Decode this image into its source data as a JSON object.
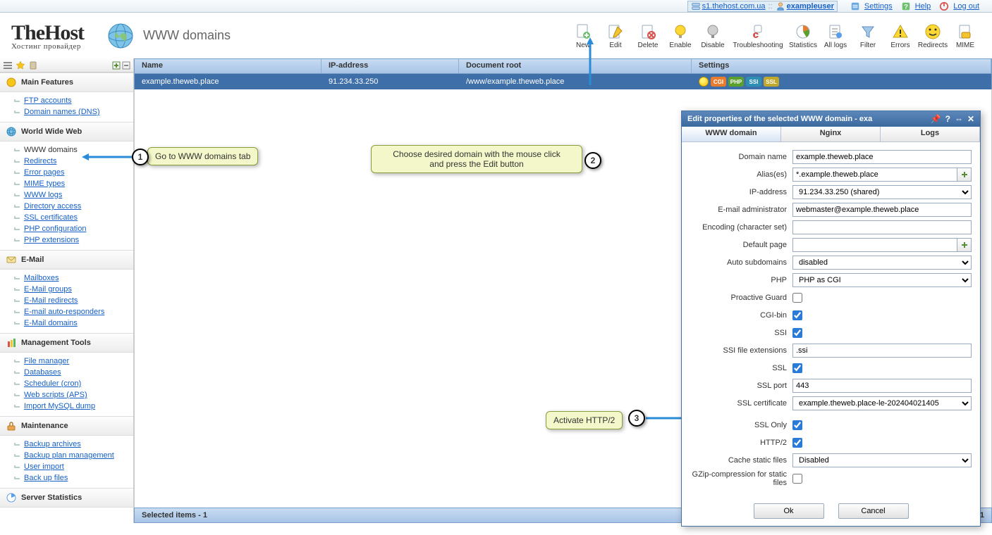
{
  "top": {
    "host": "s1.thehost.com.ua",
    "sep": "::",
    "user": "exampleuser",
    "links": {
      "settings": "Settings",
      "help": "Help",
      "logout": "Log out"
    }
  },
  "brand": {
    "big": "TheHost",
    "sub": "Хостинг провайдер"
  },
  "page_title": "WWW domains",
  "tools": [
    {
      "id": "new",
      "lbl": "New",
      "svg": "📄",
      "plus": true
    },
    {
      "id": "edit",
      "lbl": "Edit",
      "svg": "✏️"
    },
    {
      "id": "delete",
      "lbl": "Delete",
      "svg": "🗑"
    },
    {
      "id": "enable",
      "lbl": "Enable",
      "svg": "💡"
    },
    {
      "id": "disable",
      "lbl": "Disable",
      "svg": "○"
    },
    {
      "id": "troubleshooting",
      "lbl": "Troubleshooting",
      "svg": "🩺",
      "wide": true
    },
    {
      "id": "statistics",
      "lbl": "Statistics",
      "svg": "📊"
    },
    {
      "id": "alllogs",
      "lbl": "All logs",
      "svg": "📋"
    },
    {
      "id": "filter",
      "lbl": "Filter",
      "svg": "▼"
    },
    {
      "id": "errors",
      "lbl": "Errors",
      "svg": "⚠"
    },
    {
      "id": "redirects",
      "lbl": "Redirects",
      "svg": "🙂"
    },
    {
      "id": "mime",
      "lbl": "MIME",
      "svg": "🏷"
    }
  ],
  "sidebar": [
    {
      "title": "Main Features",
      "ic": "#f5c518",
      "items": [
        "FTP accounts",
        "Domain names (DNS)"
      ]
    },
    {
      "title": "World Wide Web",
      "ic": "#5cb85c",
      "items": [
        "WWW domains",
        "Redirects",
        "Error pages",
        "MIME types",
        "WWW logs",
        "Directory access",
        "SSL certificates",
        "PHP configuration",
        "PHP extensions"
      ],
      "active": 0
    },
    {
      "title": "E-Mail",
      "ic": "#f4c430",
      "items": [
        "Mailboxes",
        "E-Mail groups",
        "E-Mail redirects",
        "E-mail auto-responders",
        "E-Mail domains"
      ]
    },
    {
      "title": "Management Tools",
      "ic": "#d9534f",
      "items": [
        "File manager",
        "Databases",
        "Scheduler (cron)",
        "Web scripts (APS)",
        "Import MySQL dump"
      ]
    },
    {
      "title": "Maintenance",
      "ic": "#e8a74e",
      "items": [
        "Backup archives",
        "Backup plan management",
        "User import",
        "Back up files"
      ]
    },
    {
      "title": "Server Statistics",
      "ic": "#5a9de8",
      "items": []
    }
  ],
  "grid": {
    "head": [
      "Name",
      "IP-address",
      "Document root",
      "Settings"
    ],
    "row": {
      "name": "example.theweb.place",
      "ip": "91.234.33.250",
      "root": "/www/example.theweb.place"
    },
    "badges": [
      {
        "txt": "CGI",
        "bg": "#e87b2d"
      },
      {
        "txt": "PHP",
        "bg": "#5aa02c"
      },
      {
        "txt": "SSI",
        "bg": "#2d8fb3"
      },
      {
        "txt": "SSL",
        "bg": "#c0a82d"
      }
    ]
  },
  "status": {
    "left": "Selected items - 1",
    "counts": "- 1,"
  },
  "callouts": {
    "c1": "Go to WWW domains tab",
    "c2": "Choose desired domain with the mouse click\nand press the Edit button",
    "c3": "Activate HTTP/2"
  },
  "dlg": {
    "title": "Edit properties of the selected WWW domain - exa",
    "tabs": [
      "WWW domain",
      "Nginx",
      "Logs"
    ],
    "activeTab": 0,
    "fields": {
      "domain": {
        "lab": "Domain name",
        "val": "example.theweb.place"
      },
      "alias": {
        "lab": "Alias(es)",
        "val": "*.example.theweb.place"
      },
      "ip": {
        "lab": "IP-address",
        "val": "91.234.33.250 (shared)"
      },
      "email": {
        "lab": "E-mail administrator",
        "val": "webmaster@example.theweb.place"
      },
      "enc": {
        "lab": "Encoding (character set)",
        "val": ""
      },
      "defp": {
        "lab": "Default page",
        "val": ""
      },
      "auto": {
        "lab": "Auto subdomains",
        "val": "disabled"
      },
      "php": {
        "lab": "PHP",
        "val": "PHP as CGI"
      },
      "pguard": {
        "lab": "Proactive Guard",
        "chk": false
      },
      "cgi": {
        "lab": "CGI-bin",
        "chk": true
      },
      "ssi": {
        "lab": "SSI",
        "chk": true
      },
      "ssiext": {
        "lab": "SSI file extensions",
        "val": ".ssi"
      },
      "ssl": {
        "lab": "SSL",
        "chk": true
      },
      "sslport": {
        "lab": "SSL port",
        "val": "443"
      },
      "sslcert": {
        "lab": "SSL certificate",
        "val": "example.theweb.place-le-202404021405"
      },
      "sslonly": {
        "lab": "SSL Only",
        "chk": true
      },
      "http2": {
        "lab": "HTTP/2",
        "chk": true
      },
      "cache": {
        "lab": "Cache static files",
        "val": "Disabled"
      },
      "gzip": {
        "lab": "GZip-compression for static files",
        "chk": false
      }
    },
    "btn": {
      "ok": "Ok",
      "cancel": "Cancel"
    }
  },
  "colors": {
    "arrow": "#2a8cd8"
  }
}
